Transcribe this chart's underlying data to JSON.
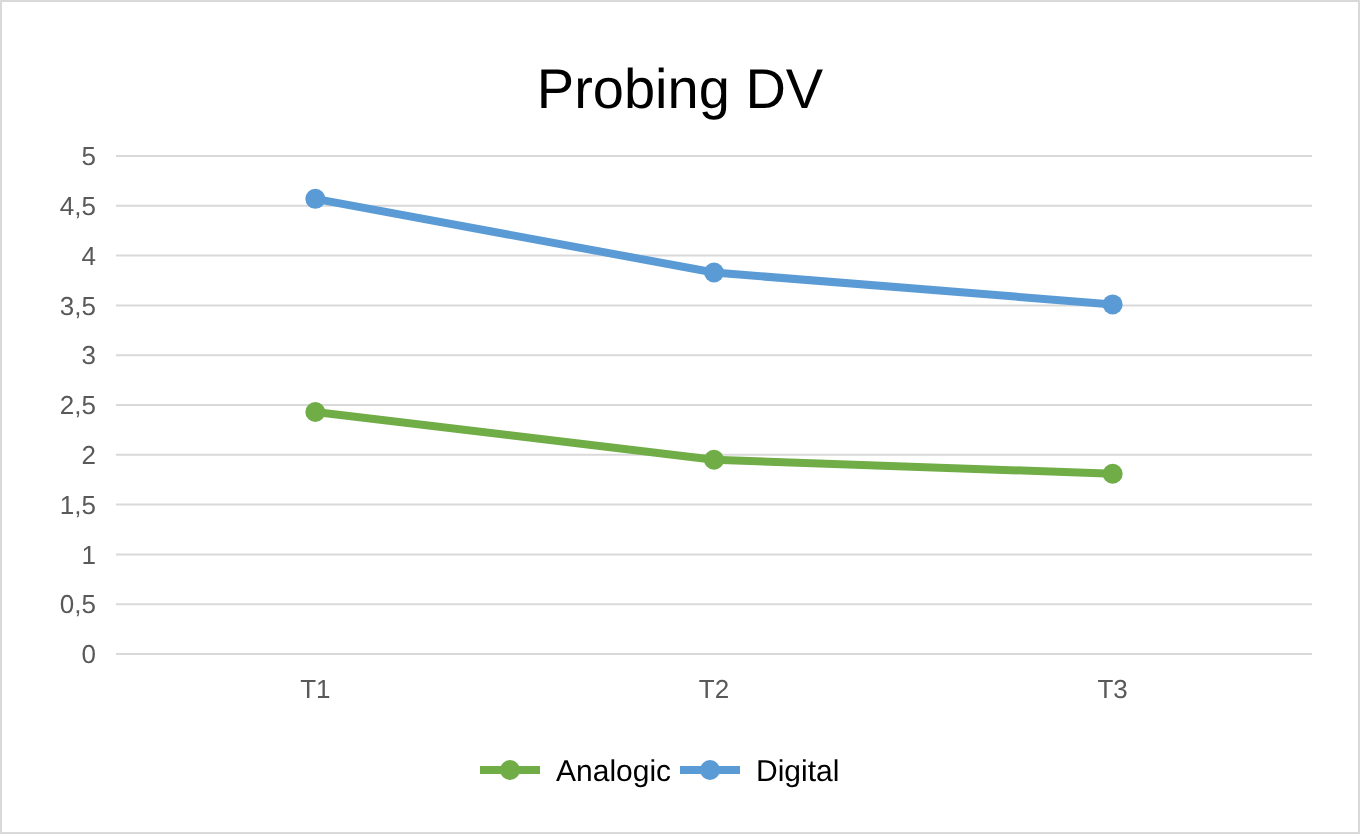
{
  "chart_data": {
    "type": "line",
    "title": "Probing DV",
    "categories": [
      "T1",
      "T2",
      "T3"
    ],
    "series": [
      {
        "name": "Analogic",
        "color": "#70ad47",
        "values": [
          2.43,
          1.95,
          1.81
        ]
      },
      {
        "name": "Digital",
        "color": "#5b9bd5",
        "values": [
          4.57,
          3.83,
          3.51
        ]
      }
    ],
    "ylim": [
      0,
      5
    ],
    "yticks": [
      0,
      {
        "value": 0.5,
        "label": "0,5"
      },
      1,
      {
        "value": 1.5,
        "label": "1,5"
      },
      2,
      {
        "value": 2.5,
        "label": "2,5"
      },
      3,
      {
        "value": 3.5,
        "label": "3,5"
      },
      4,
      {
        "value": 4.5,
        "label": "4,5"
      },
      5
    ],
    "grid": "y",
    "legend": "bottom",
    "marker": "circle",
    "line_style": "solid"
  }
}
